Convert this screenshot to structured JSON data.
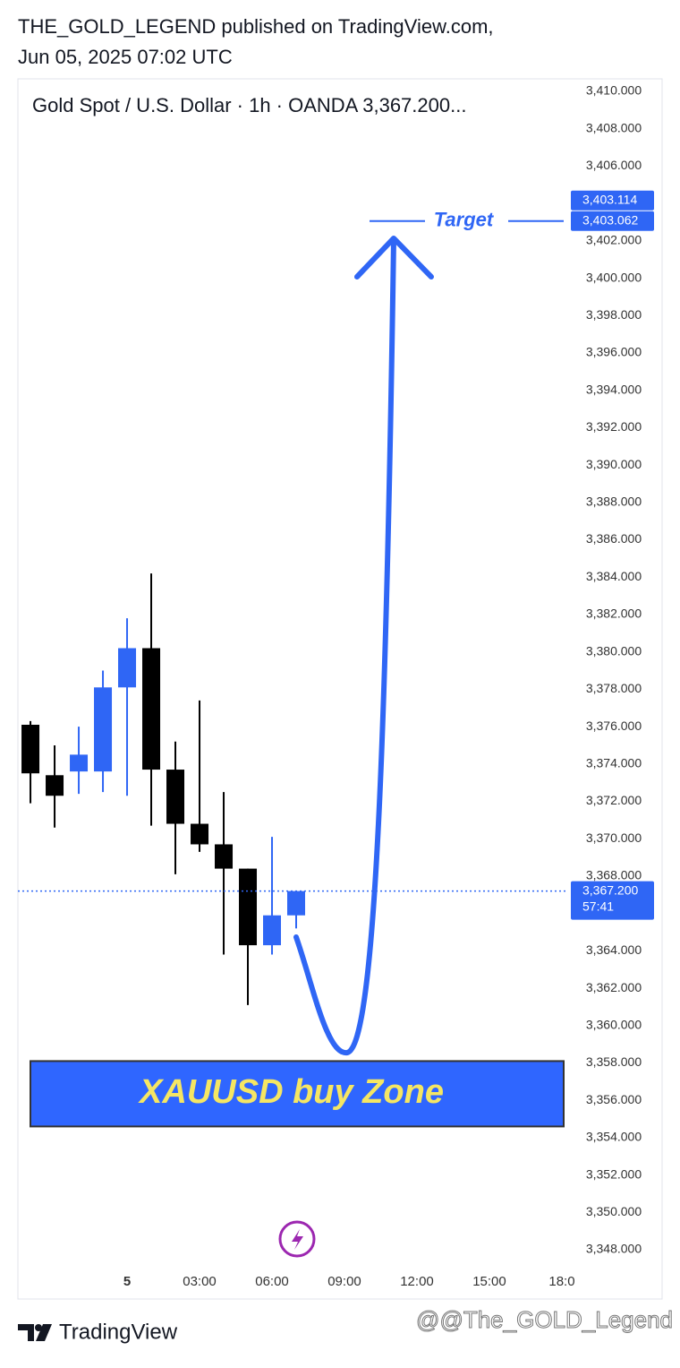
{
  "header": {
    "line1": "THE_GOLD_LEGEND published on TradingView.com,",
    "line2": "Jun 05, 2025 07:02 UTC"
  },
  "chart_data": {
    "type": "candlestick",
    "title": "Gold Spot / U.S. Dollar · 1h · OANDA  3,367.200...",
    "x": [
      -4,
      -3,
      -2,
      -1,
      0,
      1,
      2,
      3,
      4,
      5,
      6,
      7
    ],
    "open": [
      3376.1,
      3373.4,
      3373.6,
      3373.6,
      3378.1,
      3380.2,
      3373.7,
      3370.8,
      3369.7,
      3368.4,
      3364.3,
      3365.9
    ],
    "high": [
      3376.3,
      3375.0,
      3376.0,
      3379.0,
      3381.8,
      3384.2,
      3375.2,
      3377.4,
      3372.5,
      3368.4,
      3370.1,
      3367.2
    ],
    "low": [
      3371.9,
      3370.6,
      3372.4,
      3372.5,
      3372.3,
      3370.7,
      3368.1,
      3369.3,
      3363.8,
      3361.1,
      3363.8,
      3365.2
    ],
    "close": [
      3373.5,
      3372.3,
      3374.5,
      3378.1,
      3380.2,
      3373.7,
      3370.8,
      3369.7,
      3368.4,
      3364.3,
      3365.9,
      3367.2
    ],
    "up_color": "#2f66f5",
    "down_color": "#000000",
    "xlim": [
      -4.52,
      18.26
    ],
    "xticks": [
      {
        "value": 0,
        "label": "5"
      },
      {
        "value": 3,
        "label": "03:00"
      },
      {
        "value": 6,
        "label": "06:00"
      },
      {
        "value": 9,
        "label": "09:00"
      },
      {
        "value": 12,
        "label": "12:00"
      },
      {
        "value": 15,
        "label": "15:00"
      },
      {
        "value": 18,
        "label": "18:0"
      }
    ],
    "ylim": [
      3347,
      3410.7
    ],
    "yticks": [
      {
        "value": 3410,
        "label": "3,410.000"
      },
      {
        "value": 3408,
        "label": "3,408.000"
      },
      {
        "value": 3406,
        "label": "3,406.000"
      },
      {
        "value": 3402,
        "label": "3,402.000"
      },
      {
        "value": 3400,
        "label": "3,400.000"
      },
      {
        "value": 3398,
        "label": "3,398.000"
      },
      {
        "value": 3396,
        "label": "3,396.000"
      },
      {
        "value": 3394,
        "label": "3,394.000"
      },
      {
        "value": 3392,
        "label": "3,392.000"
      },
      {
        "value": 3390,
        "label": "3,390.000"
      },
      {
        "value": 3388,
        "label": "3,388.000"
      },
      {
        "value": 3386,
        "label": "3,386.000"
      },
      {
        "value": 3384,
        "label": "3,384.000"
      },
      {
        "value": 3382,
        "label": "3,382.000"
      },
      {
        "value": 3380,
        "label": "3,380.000"
      },
      {
        "value": 3378,
        "label": "3,378.000"
      },
      {
        "value": 3376,
        "label": "3,376.000"
      },
      {
        "value": 3374,
        "label": "3,374.000"
      },
      {
        "value": 3372,
        "label": "3,372.000"
      },
      {
        "value": 3370,
        "label": "3,370.000"
      },
      {
        "value": 3368,
        "label": "3,368.000"
      },
      {
        "value": 3364,
        "label": "3,364.000"
      },
      {
        "value": 3362,
        "label": "3,362.000"
      },
      {
        "value": 3360,
        "label": "3,360.000"
      },
      {
        "value": 3358,
        "label": "3,358.000"
      },
      {
        "value": 3356,
        "label": "3,356.000"
      },
      {
        "value": 3354,
        "label": "3,354.000"
      },
      {
        "value": 3352,
        "label": "3,352.000"
      },
      {
        "value": 3350,
        "label": "3,350.000"
      },
      {
        "value": 3348,
        "label": "3,348.000"
      }
    ],
    "grid": false,
    "last_price": {
      "value": 3367.2,
      "label": "3,367.200",
      "countdown": "57:41"
    },
    "target": {
      "text": "Target",
      "color": "#2f66f5",
      "levels": [
        {
          "value": 3403.114,
          "label": "3,403.114"
        },
        {
          "value": 3403.062,
          "label": "3,403.062"
        }
      ]
    },
    "zone": {
      "label": "XAUUSD buy Zone",
      "low": 3354.6,
      "high": 3358.1,
      "color": "#2f66ff",
      "text_color": "#f5e663"
    }
  },
  "footer": {
    "brand": "TradingView",
    "watermark": "@@The_GOLD_Legend"
  }
}
